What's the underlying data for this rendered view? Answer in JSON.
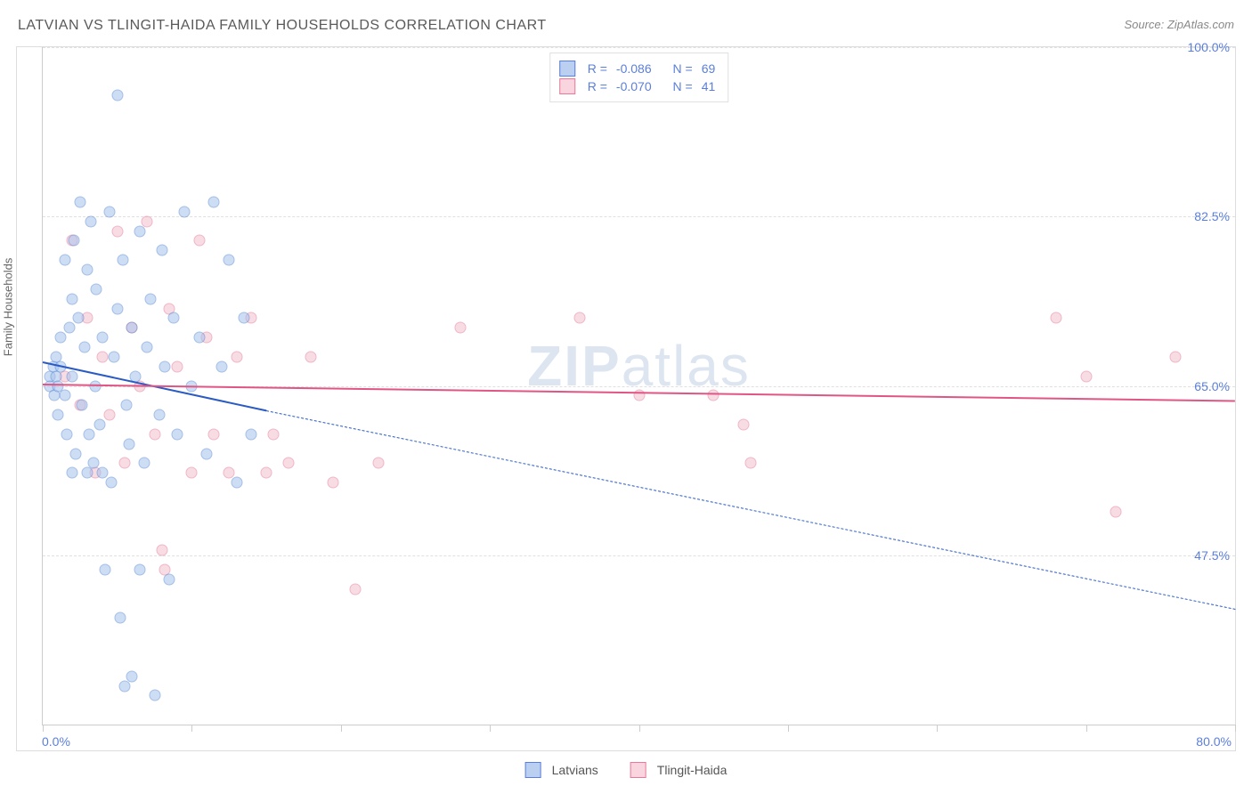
{
  "title": "LATVIAN VS TLINGIT-HAIDA FAMILY HOUSEHOLDS CORRELATION CHART",
  "source": "Source: ZipAtlas.com",
  "watermark_a": "ZIP",
  "watermark_b": "atlas",
  "y_axis_label": "Family Households",
  "chart": {
    "type": "scatter",
    "background_color": "#ffffff",
    "grid_color": "#e0e0e0",
    "axis_color": "#cccccc",
    "xlim": [
      0.0,
      80.0
    ],
    "ylim": [
      30.0,
      100.0
    ],
    "x_ticks_pct": [
      0,
      12.5,
      25,
      37.5,
      50,
      62.5,
      75,
      87.5,
      100
    ],
    "x_tick_labels": {
      "left": "0.0%",
      "right": "80.0%"
    },
    "y_gridlines": [
      47.5,
      65.0,
      82.5,
      100.0
    ],
    "y_tick_labels": [
      "47.5%",
      "65.0%",
      "82.5%",
      "100.0%"
    ],
    "marker_size": 13,
    "marker_opacity": 0.55,
    "line_width_solid": 2.5,
    "line_width_dash": 1.2,
    "series": {
      "latvians": {
        "label": "Latvians",
        "fill_color": "#a6c3ec",
        "stroke_color": "#5b8ad6",
        "line_color": "#2a5bc4",
        "trend": {
          "x1": 0.0,
          "y1": 67.5,
          "x2": 15.0,
          "y2": 62.5,
          "dash_to_x": 80.0,
          "dash_to_y": 42.0
        },
        "R": "-0.086",
        "N": "69",
        "points": [
          [
            0.5,
            66
          ],
          [
            0.5,
            65
          ],
          [
            0.7,
            67
          ],
          [
            0.8,
            64
          ],
          [
            0.9,
            66
          ],
          [
            0.9,
            68
          ],
          [
            1.0,
            65
          ],
          [
            1.0,
            62
          ],
          [
            1.2,
            67
          ],
          [
            1.2,
            70
          ],
          [
            1.5,
            64
          ],
          [
            1.5,
            78
          ],
          [
            1.6,
            60
          ],
          [
            1.8,
            71
          ],
          [
            2.0,
            74
          ],
          [
            2.0,
            66
          ],
          [
            2.1,
            80
          ],
          [
            2.2,
            58
          ],
          [
            2.4,
            72
          ],
          [
            2.5,
            84
          ],
          [
            2.6,
            63
          ],
          [
            2.8,
            69
          ],
          [
            3.0,
            77
          ],
          [
            3.1,
            60
          ],
          [
            3.2,
            82
          ],
          [
            3.4,
            57
          ],
          [
            3.5,
            65
          ],
          [
            3.6,
            75
          ],
          [
            3.8,
            61
          ],
          [
            4.0,
            70
          ],
          [
            4.2,
            46
          ],
          [
            4.5,
            83
          ],
          [
            4.6,
            55
          ],
          [
            4.8,
            68
          ],
          [
            5.0,
            73
          ],
          [
            5.0,
            95
          ],
          [
            5.2,
            41
          ],
          [
            5.4,
            78
          ],
          [
            5.6,
            63
          ],
          [
            5.8,
            59
          ],
          [
            6.0,
            71
          ],
          [
            6.2,
            66
          ],
          [
            6.5,
            81
          ],
          [
            6.8,
            57
          ],
          [
            7.0,
            69
          ],
          [
            7.2,
            74
          ],
          [
            7.5,
            33
          ],
          [
            7.8,
            62
          ],
          [
            8.0,
            79
          ],
          [
            8.2,
            67
          ],
          [
            8.5,
            45
          ],
          [
            8.8,
            72
          ],
          [
            9.0,
            60
          ],
          [
            9.5,
            83
          ],
          [
            10.0,
            65
          ],
          [
            10.5,
            70
          ],
          [
            11.0,
            58
          ],
          [
            11.5,
            84
          ],
          [
            12.0,
            67
          ],
          [
            12.5,
            78
          ],
          [
            13.0,
            55
          ],
          [
            13.5,
            72
          ],
          [
            14.0,
            60
          ],
          [
            3.0,
            56
          ],
          [
            4.0,
            56
          ],
          [
            2.0,
            56
          ],
          [
            5.5,
            34
          ],
          [
            6.0,
            35
          ],
          [
            6.5,
            46
          ]
        ]
      },
      "tlingit": {
        "label": "Tlingit-Haida",
        "fill_color": "#f3c0cf",
        "stroke_color": "#e67a9a",
        "line_color": "#e15584",
        "trend": {
          "x1": 0.0,
          "y1": 65.2,
          "x2": 80.0,
          "y2": 63.5
        },
        "R": "-0.070",
        "N": "41",
        "points": [
          [
            1.5,
            66
          ],
          [
            2.0,
            80
          ],
          [
            2.5,
            63
          ],
          [
            3.0,
            72
          ],
          [
            3.5,
            56
          ],
          [
            4.0,
            68
          ],
          [
            4.5,
            62
          ],
          [
            5.0,
            81
          ],
          [
            5.5,
            57
          ],
          [
            6.0,
            71
          ],
          [
            6.5,
            65
          ],
          [
            7.0,
            82
          ],
          [
            7.5,
            60
          ],
          [
            8.0,
            48
          ],
          [
            8.5,
            73
          ],
          [
            9.0,
            67
          ],
          [
            10.0,
            56
          ],
          [
            11.0,
            70
          ],
          [
            11.5,
            60
          ],
          [
            12.5,
            56
          ],
          [
            13.0,
            68
          ],
          [
            14.0,
            72
          ],
          [
            15.0,
            56
          ],
          [
            15.5,
            60
          ],
          [
            16.5,
            57
          ],
          [
            18.0,
            68
          ],
          [
            19.5,
            55
          ],
          [
            21.0,
            44
          ],
          [
            22.5,
            57
          ],
          [
            28.0,
            71
          ],
          [
            36.0,
            72
          ],
          [
            40.0,
            64
          ],
          [
            45.0,
            64
          ],
          [
            47.0,
            61
          ],
          [
            47.5,
            57
          ],
          [
            68.0,
            72
          ],
          [
            70.0,
            66
          ],
          [
            72.0,
            52
          ],
          [
            76.0,
            68
          ],
          [
            10.5,
            80
          ],
          [
            8.2,
            46
          ]
        ]
      }
    }
  },
  "legend_stats": {
    "R_label": "R =",
    "N_label": "N ="
  }
}
